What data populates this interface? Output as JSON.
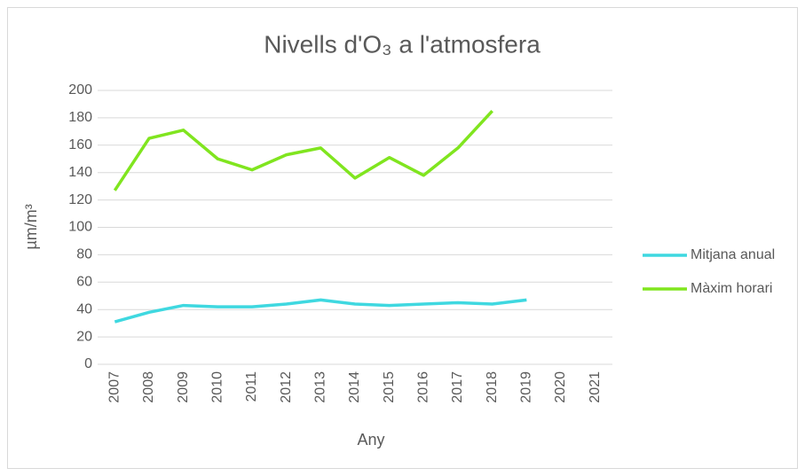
{
  "chart_data": {
    "type": "line",
    "title": "Nivells d'O₃ a l'atmosfera",
    "x_label": "Any",
    "y_label": "µm/m³",
    "categories": [
      "2007",
      "2008",
      "2009",
      "2010",
      "2011",
      "2012",
      "2013",
      "2014",
      "2015",
      "2016",
      "2017",
      "2018",
      "2019",
      "2020",
      "2021"
    ],
    "series": [
      {
        "name": "Mitjana anual",
        "color": "#3fd8e0",
        "values": [
          31,
          38,
          43,
          42,
          42,
          44,
          47,
          44,
          43,
          44,
          45,
          44,
          47,
          null,
          null
        ]
      },
      {
        "name": "Màxim horari",
        "color": "#80e51f",
        "values": [
          127,
          165,
          171,
          150,
          142,
          153,
          158,
          136,
          151,
          138,
          158,
          185,
          null,
          null,
          null
        ]
      }
    ],
    "ylim": [
      0,
      200
    ],
    "yticks": [
      0,
      20,
      40,
      60,
      80,
      100,
      120,
      140,
      160,
      180,
      200
    ],
    "grid": true,
    "legend": "right"
  }
}
